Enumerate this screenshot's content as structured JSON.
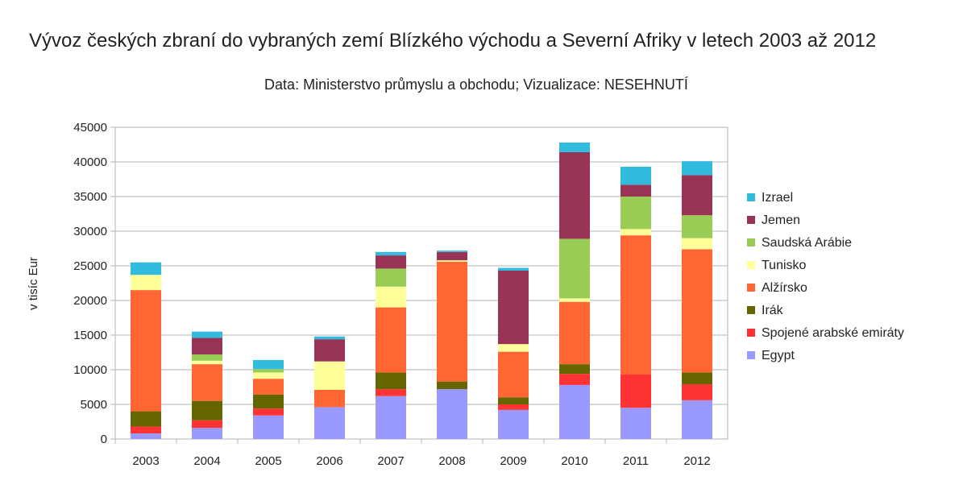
{
  "chart_data": {
    "type": "bar",
    "stacked": true,
    "title": "Vývoz českých zbraní do vybraných zemí Blízkého východu a Severní Afriky v letech 2003 až 2012",
    "subtitle": "Data: Ministerstvo průmyslu a obchodu; Vizualizace: NESEHNUTÍ",
    "xlabel": "",
    "ylabel": "v tisíc Eur",
    "ylim": [
      0,
      45000
    ],
    "yticks": [
      0,
      5000,
      10000,
      15000,
      20000,
      25000,
      30000,
      35000,
      40000,
      45000
    ],
    "grid": true,
    "legend_position": "right",
    "categories": [
      "2003",
      "2004",
      "2005",
      "2006",
      "2007",
      "2008",
      "2009",
      "2010",
      "2011",
      "2012"
    ],
    "series": [
      {
        "name": "Egypt",
        "color": "#9999ff",
        "values": [
          800,
          1600,
          3400,
          4600,
          6200,
          7200,
          4200,
          7800,
          4500,
          5600
        ]
      },
      {
        "name": "Spojené arabské emiráty",
        "color": "#ff3333",
        "values": [
          1000,
          1100,
          1000,
          0,
          1000,
          0,
          800,
          1600,
          4800,
          2300
        ]
      },
      {
        "name": "Irák",
        "color": "#666600",
        "values": [
          2200,
          2800,
          2000,
          0,
          2400,
          1100,
          1000,
          1400,
          0,
          1700
        ]
      },
      {
        "name": "Alžírsko",
        "color": "#ff6633",
        "values": [
          17500,
          5300,
          2300,
          2500,
          9400,
          17300,
          6600,
          9000,
          20100,
          17800
        ]
      },
      {
        "name": "Tunisko",
        "color": "#ffff99",
        "values": [
          2200,
          500,
          900,
          4100,
          3000,
          200,
          1100,
          500,
          900,
          1600
        ]
      },
      {
        "name": "Saudská Arábie",
        "color": "#99cc55",
        "values": [
          0,
          900,
          500,
          0,
          2600,
          0,
          0,
          8600,
          4700,
          3300
        ]
      },
      {
        "name": "Jemen",
        "color": "#993355",
        "values": [
          0,
          2400,
          0,
          3200,
          1900,
          1200,
          10600,
          12500,
          1700,
          5800
        ]
      },
      {
        "name": "Izrael",
        "color": "#33bbdd",
        "values": [
          1800,
          900,
          1300,
          400,
          500,
          200,
          400,
          1400,
          2600,
          2000
        ]
      }
    ]
  }
}
